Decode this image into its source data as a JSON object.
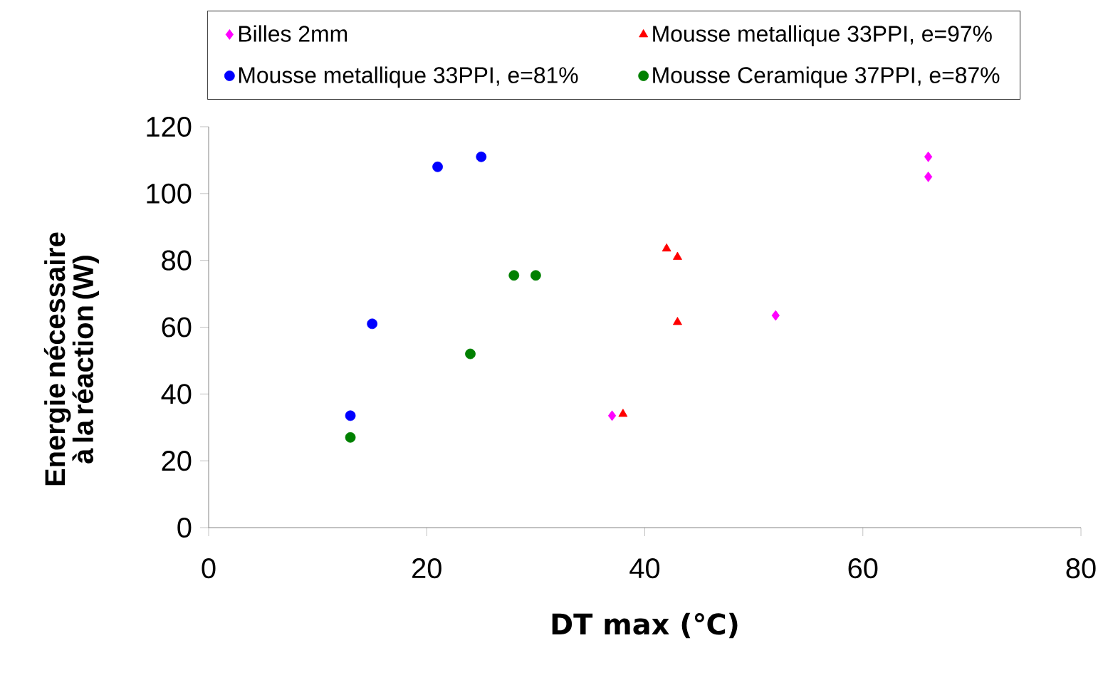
{
  "chart_data": {
    "type": "scatter",
    "xlabel": "DT max (℃)",
    "ylabel": "Energie nécessaire à la réaction (W)",
    "xlim": [
      0,
      80
    ],
    "xticks": [
      0,
      20,
      40,
      60,
      80
    ],
    "ylim": [
      0,
      120
    ],
    "yticks": [
      0,
      20,
      40,
      60,
      80,
      100,
      120
    ],
    "legend": "top",
    "grid": false,
    "series": [
      {
        "name": "Billes 2mm",
        "color": "#ff00ff",
        "marker": "diamond",
        "x": [
          37,
          52,
          66,
          66
        ],
        "values": [
          33.5,
          63.5,
          111,
          105
        ]
      },
      {
        "name": "Mousse metallique     33PPI, e=97%",
        "color": "#ff0000",
        "marker": "triangle",
        "x": [
          38,
          42,
          43,
          43
        ],
        "values": [
          34,
          83.5,
          81,
          61.5
        ]
      },
      {
        "name": "Mousse metallique     33PPI, e=81%",
        "color": "#0000ff",
        "marker": "circle",
        "x": [
          13,
          15,
          21,
          25
        ],
        "values": [
          33.5,
          61,
          108,
          111
        ]
      },
      {
        "name": "Mousse Ceramique     37PPI, e=87%",
        "color": "#008000",
        "marker": "circle",
        "x": [
          13,
          24,
          28,
          30
        ],
        "values": [
          27,
          52,
          75.5,
          75.5
        ]
      }
    ]
  }
}
